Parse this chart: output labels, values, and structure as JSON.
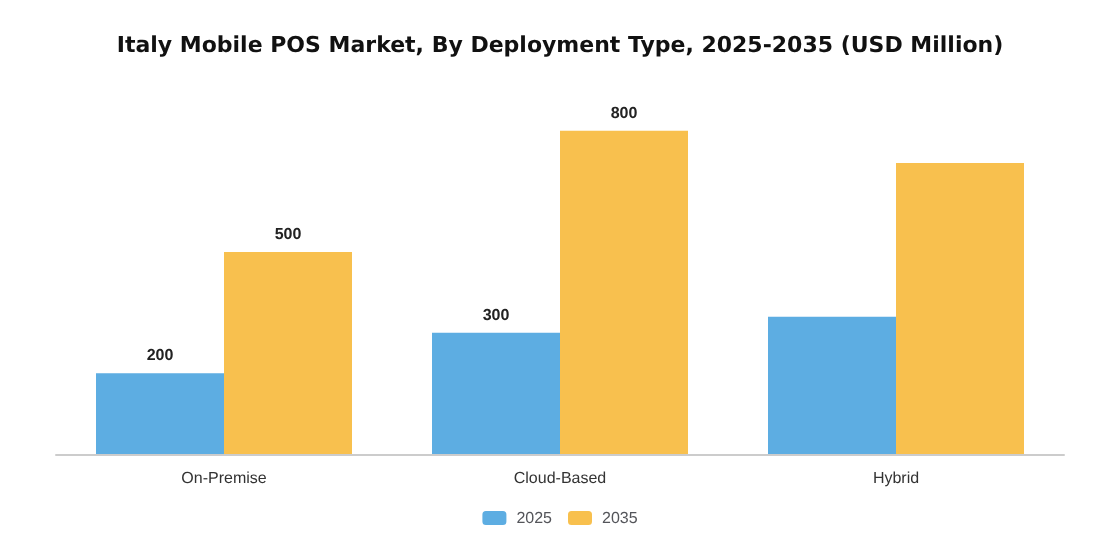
{
  "chart_data": {
    "type": "bar",
    "title": "Italy Mobile POS Market, By Deployment Type, 2025-2035 (USD Million)",
    "categories": [
      "On-Premise",
      "Cloud-Based",
      "Hybrid"
    ],
    "series": [
      {
        "name": "2025",
        "color": "#5dade2",
        "values": [
          200,
          300,
          340
        ],
        "value_labels": [
          "200",
          "300",
          null
        ]
      },
      {
        "name": "2035",
        "color": "#f8c04e",
        "values": [
          500,
          800,
          720
        ],
        "value_labels": [
          "500",
          "800",
          null
        ]
      }
    ],
    "legend": "bottom",
    "grid": false,
    "tick_labels": "x"
  }
}
